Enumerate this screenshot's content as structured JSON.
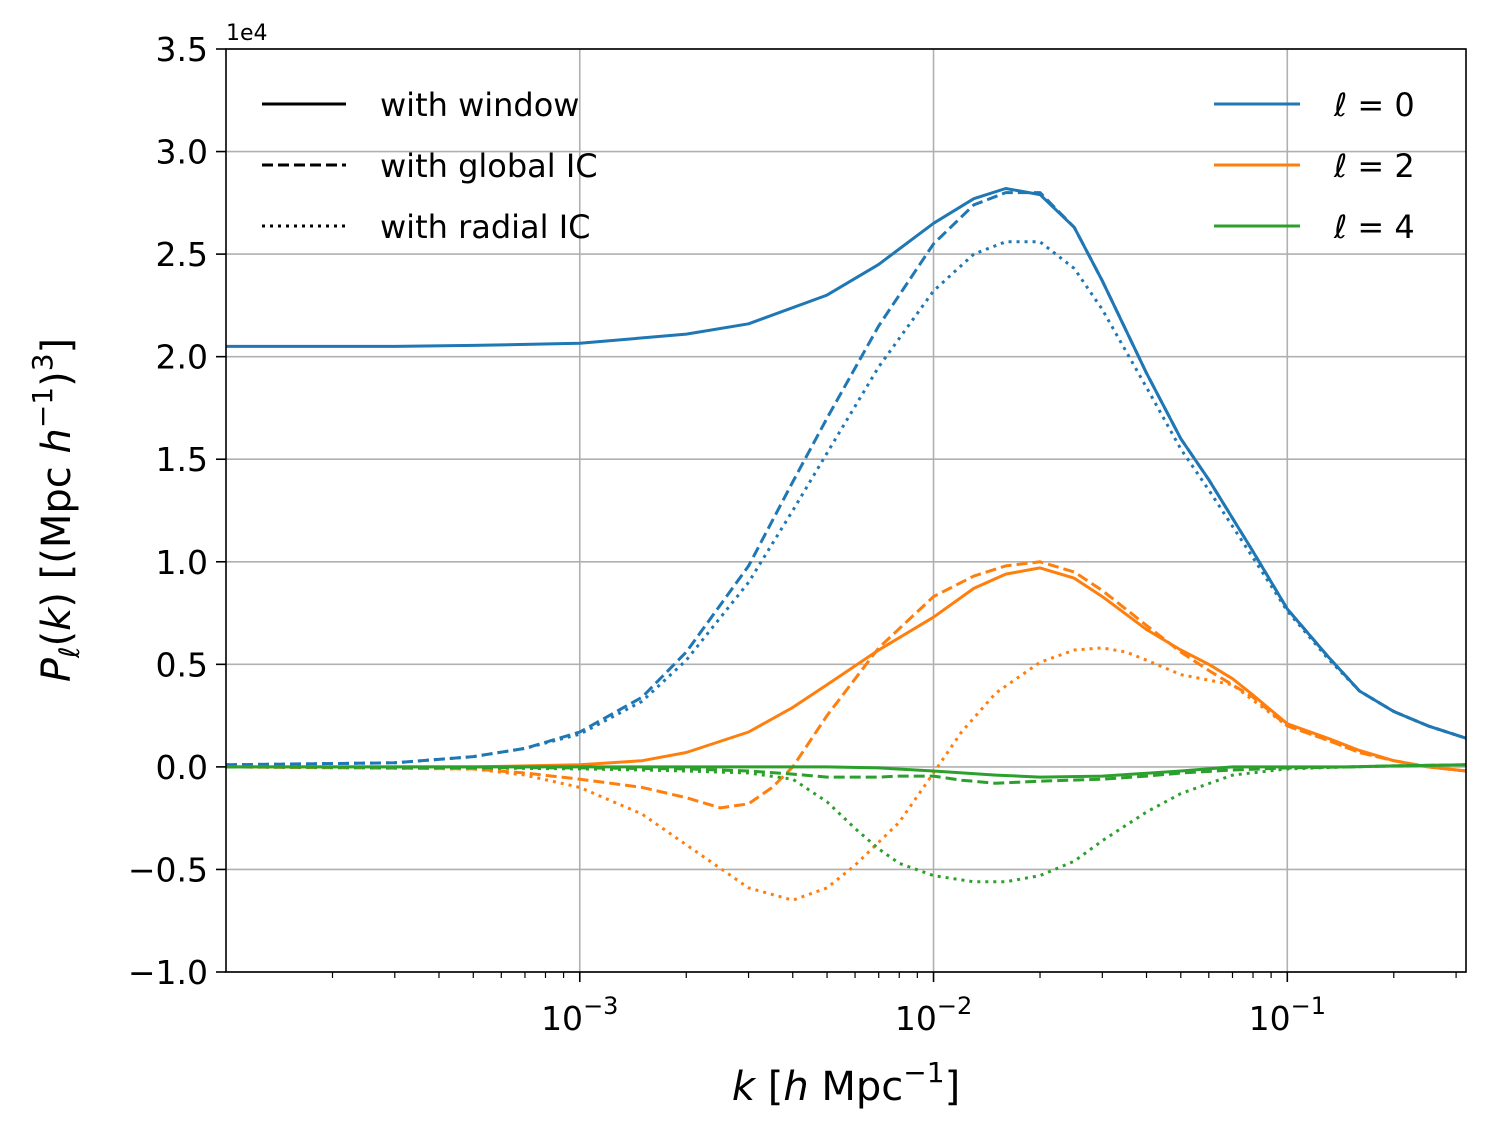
{
  "chart_data": {
    "type": "line",
    "xscale": "log",
    "xlim": [
      0.0001,
      0.32
    ],
    "ylim": [
      -10000,
      35000
    ],
    "y_offset_label": "1e4",
    "grid": true,
    "xlabel": {
      "var": "k",
      "open": " [",
      "h": "h",
      "unit": " Mpc",
      "exp": "−1",
      "close": "]"
    },
    "ylabel": {
      "var": "P",
      "sub": "ℓ",
      "arg": "(",
      "argvar": "k",
      "argclose": ")",
      "open": " [(Mpc ",
      "h": "h",
      "exp1": "−1",
      "close1": ")",
      "exp2": "3",
      "close2": "]"
    },
    "x_ticks": [
      {
        "value": 0.001,
        "base": "10",
        "exp": "−3"
      },
      {
        "value": 0.01,
        "base": "10",
        "exp": "−2"
      },
      {
        "value": 0.1,
        "base": "10",
        "exp": "−1"
      }
    ],
    "y_ticks": [
      {
        "value": 35000,
        "label": "3.5"
      },
      {
        "value": 30000,
        "label": "3.0"
      },
      {
        "value": 25000,
        "label": "2.5"
      },
      {
        "value": 20000,
        "label": "2.0"
      },
      {
        "value": 15000,
        "label": "1.5"
      },
      {
        "value": 10000,
        "label": "1.0"
      },
      {
        "value": 5000,
        "label": "0.5"
      },
      {
        "value": 0,
        "label": "0.0"
      },
      {
        "value": -5000,
        "label": "−0.5"
      },
      {
        "value": -10000,
        "label": "−1.0"
      }
    ],
    "legend_styles": [
      {
        "label": "with window",
        "dash": "solid"
      },
      {
        "label": "with global IC",
        "dash": "dashed"
      },
      {
        "label": "with radial IC",
        "dash": "dotted"
      }
    ],
    "legend_multipoles": [
      {
        "ell": "ℓ",
        "eq": " = ",
        "num": "0",
        "color": "#1f77b4"
      },
      {
        "ell": "ℓ",
        "eq": " = ",
        "num": "2",
        "color": "#ff7f0e"
      },
      {
        "ell": "ℓ",
        "eq": " = ",
        "num": "4",
        "color": "#2ca02c"
      }
    ],
    "series": [
      {
        "name": "ℓ=0 with window",
        "color": "#1f77b4",
        "dash": "solid",
        "x": [
          0.0001,
          0.0003,
          0.0005,
          0.001,
          0.002,
          0.003,
          0.005,
          0.007,
          0.01,
          0.013,
          0.016,
          0.02,
          0.025,
          0.03,
          0.04,
          0.05,
          0.06,
          0.08,
          0.1,
          0.13,
          0.16,
          0.2,
          0.25,
          0.32
        ],
        "y": [
          20500,
          20500,
          20550,
          20650,
          21100,
          21600,
          23000,
          24500,
          26500,
          27700,
          28200,
          27900,
          26300,
          23700,
          19200,
          16000,
          14000,
          10500,
          7700,
          5400,
          3700,
          2700,
          2000,
          1400
        ]
      },
      {
        "name": "ℓ=0 with global IC",
        "color": "#1f77b4",
        "dash": "dashed",
        "x": [
          0.0001,
          0.0003,
          0.0005,
          0.0007,
          0.001,
          0.0015,
          0.002,
          0.003,
          0.004,
          0.005,
          0.007,
          0.01,
          0.013,
          0.016,
          0.02,
          0.025,
          0.03,
          0.04,
          0.05,
          0.06,
          0.08,
          0.1,
          0.13,
          0.16,
          0.2,
          0.25,
          0.32
        ],
        "y": [
          100,
          200,
          500,
          900,
          1700,
          3400,
          5600,
          9800,
          13900,
          17000,
          21500,
          25500,
          27400,
          28000,
          28000,
          26300,
          23700,
          19200,
          16000,
          14000,
          10500,
          7700,
          5400,
          3700,
          2700,
          2000,
          1400
        ]
      },
      {
        "name": "ℓ=0 with radial IC",
        "color": "#1f77b4",
        "dash": "dotted",
        "x": [
          0.0001,
          0.0003,
          0.0005,
          0.0007,
          0.001,
          0.0015,
          0.002,
          0.003,
          0.004,
          0.005,
          0.007,
          0.01,
          0.013,
          0.016,
          0.02,
          0.025,
          0.03,
          0.04,
          0.05,
          0.06,
          0.08,
          0.1,
          0.13,
          0.16,
          0.2,
          0.25,
          0.32
        ],
        "y": [
          100,
          200,
          500,
          900,
          1600,
          3200,
          5200,
          9000,
          12500,
          15300,
          19500,
          23200,
          25000,
          25600,
          25600,
          24300,
          22300,
          18500,
          15500,
          13500,
          10200,
          7600,
          5300,
          3700,
          2700,
          2000,
          1400
        ]
      },
      {
        "name": "ℓ=2 with window",
        "color": "#ff7f0e",
        "dash": "solid",
        "x": [
          0.0001,
          0.0005,
          0.001,
          0.0015,
          0.002,
          0.003,
          0.004,
          0.005,
          0.007,
          0.01,
          0.013,
          0.016,
          0.02,
          0.025,
          0.03,
          0.04,
          0.05,
          0.06,
          0.07,
          0.08,
          0.1,
          0.13,
          0.16,
          0.2,
          0.25,
          0.32
        ],
        "y": [
          0,
          0,
          100,
          300,
          700,
          1700,
          2900,
          4000,
          5700,
          7300,
          8700,
          9400,
          9700,
          9200,
          8300,
          6700,
          5700,
          5000,
          4300,
          3500,
          2100,
          1400,
          800,
          300,
          0,
          -200
        ]
      },
      {
        "name": "ℓ=2 with global IC",
        "color": "#ff7f0e",
        "dash": "dashed",
        "x": [
          0.0001,
          0.0005,
          0.0007,
          0.001,
          0.0015,
          0.002,
          0.0025,
          0.003,
          0.0035,
          0.004,
          0.005,
          0.007,
          0.01,
          0.013,
          0.016,
          0.02,
          0.025,
          0.03,
          0.04,
          0.05,
          0.06,
          0.08,
          0.1,
          0.13,
          0.16,
          0.2,
          0.25,
          0.32
        ],
        "y": [
          0,
          -100,
          -300,
          -600,
          -1000,
          -1500,
          -2000,
          -1800,
          -1000,
          0,
          2500,
          5800,
          8300,
          9300,
          9800,
          10000,
          9500,
          8600,
          6900,
          5600,
          4700,
          3400,
          2000,
          1300,
          700,
          300,
          0,
          -200
        ]
      },
      {
        "name": "ℓ=2 with radial IC",
        "color": "#ff7f0e",
        "dash": "dotted",
        "x": [
          0.0001,
          0.0005,
          0.0007,
          0.001,
          0.0015,
          0.002,
          0.003,
          0.004,
          0.005,
          0.006,
          0.008,
          0.01,
          0.012,
          0.015,
          0.02,
          0.025,
          0.03,
          0.035,
          0.04,
          0.05,
          0.07,
          0.1,
          0.13,
          0.16,
          0.2,
          0.25,
          0.32
        ],
        "y": [
          0,
          -100,
          -400,
          -1000,
          -2300,
          -3800,
          -5900,
          -6500,
          -5900,
          -4800,
          -2700,
          -300,
          1700,
          3600,
          5100,
          5700,
          5800,
          5600,
          5200,
          4500,
          4000,
          2000,
          1300,
          700,
          300,
          0,
          -200
        ]
      },
      {
        "name": "ℓ=4 with window",
        "color": "#2ca02c",
        "dash": "solid",
        "x": [
          0.0001,
          0.001,
          0.003,
          0.005,
          0.007,
          0.01,
          0.015,
          0.02,
          0.03,
          0.05,
          0.07,
          0.1,
          0.15,
          0.2,
          0.32
        ],
        "y": [
          0,
          0,
          0,
          0,
          -50,
          -200,
          -400,
          -500,
          -450,
          -200,
          0,
          0,
          0,
          50,
          100
        ]
      },
      {
        "name": "ℓ=4 with global IC",
        "color": "#2ca02c",
        "dash": "dashed",
        "x": [
          0.0001,
          0.001,
          0.002,
          0.003,
          0.004,
          0.005,
          0.007,
          0.008,
          0.01,
          0.012,
          0.015,
          0.02,
          0.03,
          0.04,
          0.05,
          0.07,
          0.1,
          0.15,
          0.2,
          0.32
        ],
        "y": [
          0,
          -50,
          -100,
          -200,
          -350,
          -500,
          -500,
          -450,
          -450,
          -650,
          -800,
          -700,
          -600,
          -450,
          -300,
          -150,
          -50,
          0,
          50,
          100
        ]
      },
      {
        "name": "ℓ=4 with radial IC",
        "color": "#2ca02c",
        "dash": "dotted",
        "x": [
          0.0001,
          0.0005,
          0.001,
          0.0015,
          0.002,
          0.003,
          0.004,
          0.005,
          0.006,
          0.007,
          0.008,
          0.01,
          0.013,
          0.016,
          0.02,
          0.025,
          0.03,
          0.04,
          0.05,
          0.07,
          0.1,
          0.15,
          0.2,
          0.32
        ],
        "y": [
          0,
          -50,
          -100,
          -150,
          -200,
          -300,
          -600,
          -1700,
          -3000,
          -4000,
          -4700,
          -5300,
          -5600,
          -5600,
          -5300,
          -4600,
          -3600,
          -2200,
          -1300,
          -400,
          -100,
          0,
          50,
          100
        ]
      }
    ]
  }
}
